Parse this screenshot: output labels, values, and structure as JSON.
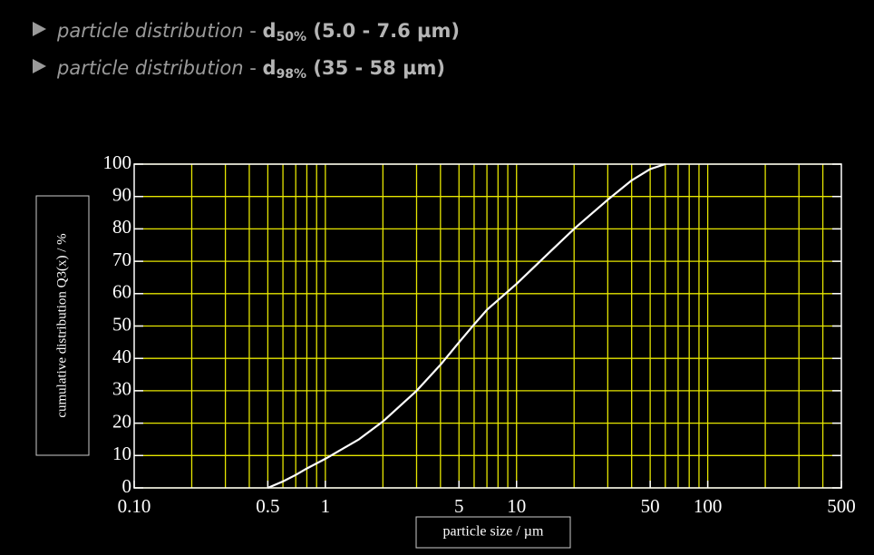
{
  "headers": [
    {
      "label": "particle distribution",
      "separator": "-",
      "symbol": "d",
      "subscript": "50%",
      "range": "(5.0 - 7.6 µm)"
    },
    {
      "label": "particle distribution",
      "separator": "-",
      "symbol": "d",
      "subscript": "98%",
      "range": "(35 - 58 µm)"
    }
  ],
  "chart_data": {
    "type": "line",
    "xlabel": "particle size / µm",
    "ylabel": "cumulative distribution Q3(x) / %",
    "x": [
      0.5,
      0.6,
      0.7,
      0.8,
      1,
      1.5,
      2,
      3,
      4,
      5,
      6,
      7,
      8,
      10,
      15,
      20,
      30,
      40,
      50,
      60
    ],
    "values": [
      0,
      2,
      4,
      6,
      9,
      15,
      20.5,
      30,
      38,
      45,
      50.5,
      55,
      58,
      63,
      73,
      80,
      89,
      95,
      98.5,
      100
    ],
    "color": "#ffffff",
    "xscale": "log",
    "xlim": [
      0.1,
      500
    ],
    "ylim": [
      0,
      100
    ],
    "xticks": [
      {
        "value": 0.1,
        "label": "0.10"
      },
      0.5,
      1,
      5,
      10,
      50,
      100,
      500
    ],
    "yticks": [
      0,
      10,
      20,
      30,
      40,
      50,
      60,
      70,
      80,
      90,
      100
    ],
    "xgrid": [
      0.2,
      0.3,
      0.4,
      0.5,
      0.6,
      0.7,
      0.8,
      0.9,
      1,
      2,
      3,
      4,
      5,
      6,
      7,
      8,
      9,
      10,
      20,
      30,
      40,
      50,
      60,
      70,
      80,
      90,
      100,
      200,
      300,
      400
    ],
    "grid": true,
    "grid_color": "#e6e600"
  }
}
